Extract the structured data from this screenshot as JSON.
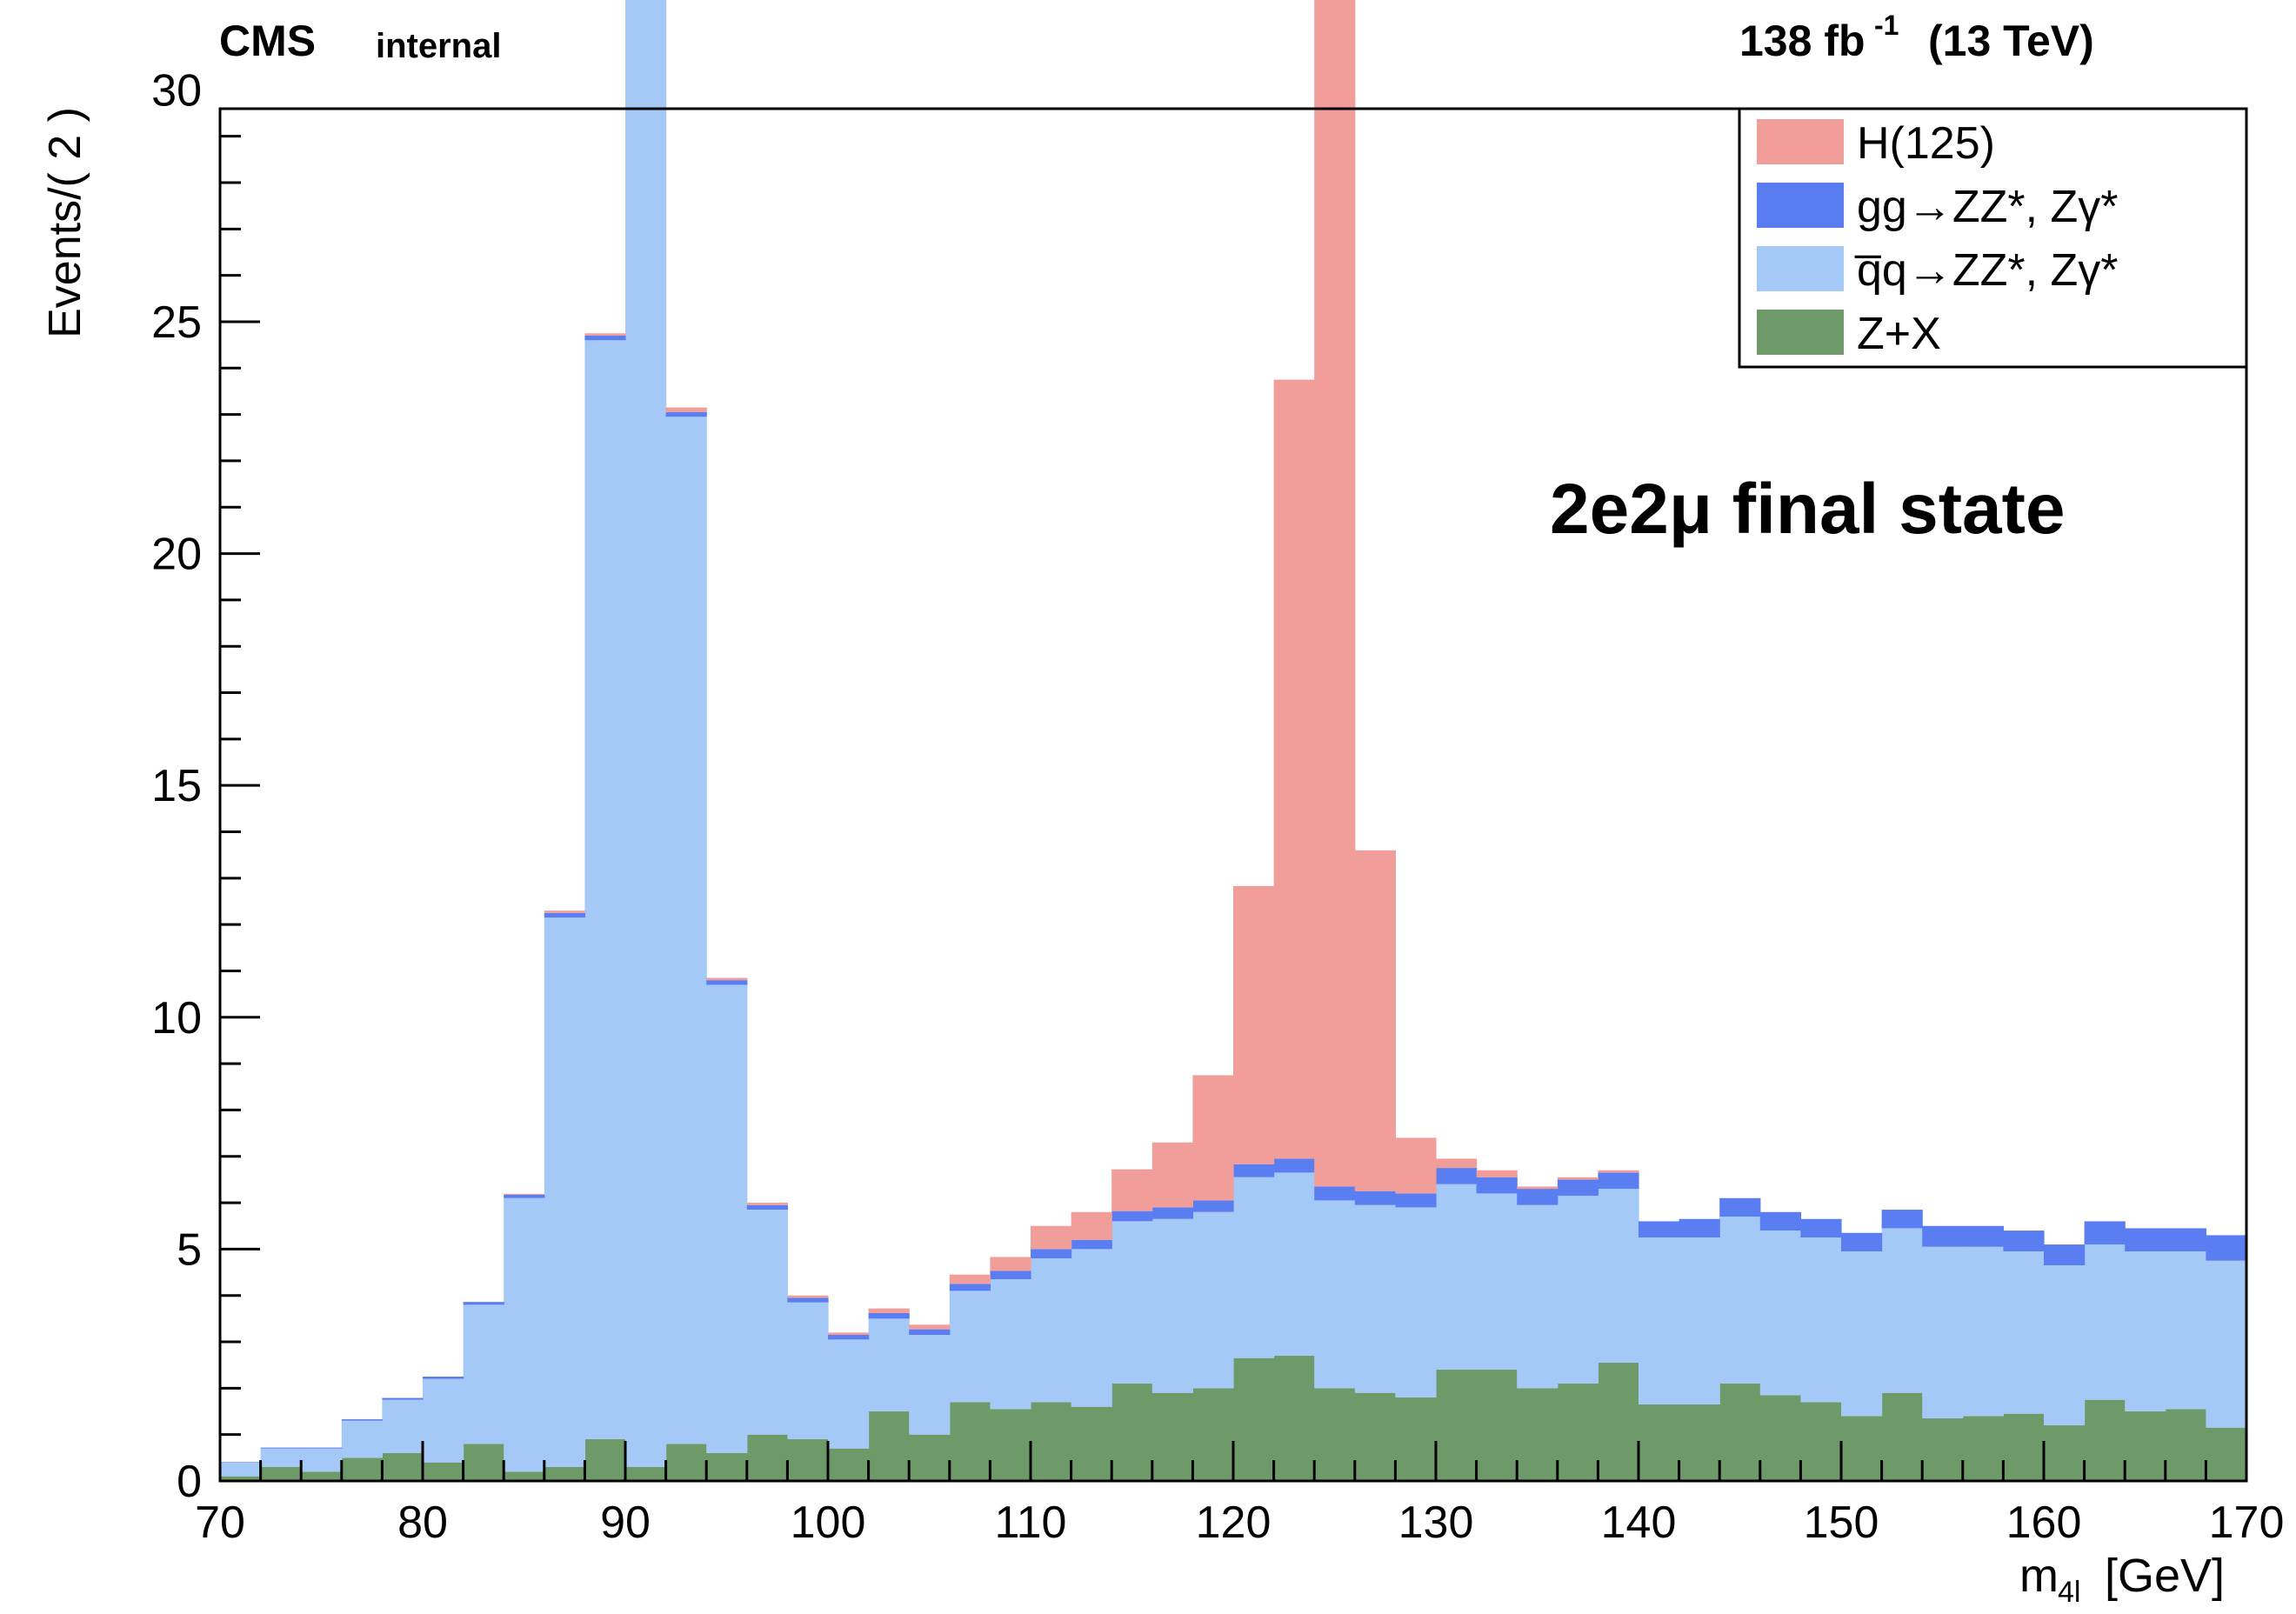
{
  "header": {
    "experiment": "CMS",
    "status": "internal",
    "lumi_value": "138 fb",
    "lumi_exp": "-1",
    "energy": "(13 TeV)"
  },
  "annotation": {
    "text": "2e2μ final state"
  },
  "chart_data": {
    "type": "bar",
    "stacked": true,
    "ylabel": "Events/( 2 )",
    "xlabel_main": "m",
    "xlabel_sub": "4l",
    "xlabel_unit": "[GeV]",
    "xlim": [
      70,
      170
    ],
    "ylim": [
      0,
      35
    ],
    "bin_width": 2,
    "x_ticks": [
      70,
      80,
      90,
      100,
      110,
      120,
      130,
      140,
      150,
      160,
      170
    ],
    "x_tick_labels": [
      "70",
      "80",
      "90",
      "100",
      "110",
      "120",
      "130",
      "140",
      "150",
      "160",
      "170"
    ],
    "y_ticks": [
      0,
      5,
      10,
      15,
      20,
      25,
      30
    ],
    "y_tick_labels": [
      "0",
      "5",
      "10",
      "15",
      "20",
      "25",
      "30"
    ],
    "legend_position": "top-right",
    "bin_edges_start": [
      70,
      72,
      74,
      76,
      78,
      80,
      82,
      84,
      86,
      88,
      90,
      92,
      94,
      96,
      98,
      100,
      102,
      104,
      106,
      108,
      110,
      112,
      114,
      116,
      118,
      120,
      122,
      124,
      126,
      128,
      130,
      132,
      134,
      136,
      138,
      140,
      142,
      144,
      146,
      148,
      150,
      152,
      154,
      156,
      158,
      160,
      162,
      164,
      166,
      168
    ],
    "series": [
      {
        "name": "Z+X",
        "color": "#6e9a6a",
        "values": [
          0.1,
          0.3,
          0.2,
          0.5,
          0.6,
          0.4,
          0.8,
          0.2,
          0.3,
          0.9,
          0.3,
          0.8,
          0.6,
          1.0,
          0.9,
          0.7,
          1.5,
          1.0,
          1.7,
          1.55,
          1.7,
          1.6,
          2.1,
          1.9,
          2.0,
          2.65,
          2.7,
          2.0,
          1.9,
          1.8,
          2.4,
          2.4,
          2.0,
          2.1,
          2.55,
          1.65,
          1.65,
          2.1,
          1.85,
          1.7,
          1.4,
          1.9,
          1.35,
          1.4,
          1.45,
          1.2,
          1.75,
          1.5,
          1.55,
          1.15
        ]
      },
      {
        "name": "q̅q→ZZ*, Zγ*",
        "color": "#a5c9f7",
        "values": [
          0.3,
          0.4,
          0.5,
          0.8,
          1.15,
          1.8,
          3.0,
          5.9,
          11.85,
          23.7,
          32.85,
          22.15,
          10.1,
          4.85,
          2.95,
          2.35,
          2.0,
          2.15,
          2.4,
          2.8,
          3.1,
          3.4,
          3.5,
          3.75,
          3.8,
          3.9,
          3.95,
          4.05,
          4.05,
          4.1,
          4.0,
          3.8,
          3.95,
          4.05,
          3.75,
          3.6,
          3.6,
          3.6,
          3.55,
          3.55,
          3.55,
          3.55,
          3.7,
          3.65,
          3.5,
          3.45,
          3.35,
          3.45,
          3.4,
          3.6
        ]
      },
      {
        "name": "gg→ZZ*, Zγ*",
        "color": "#5a7ef2",
        "values": [
          0.01,
          0.02,
          0.02,
          0.03,
          0.04,
          0.05,
          0.06,
          0.07,
          0.1,
          0.1,
          0.1,
          0.1,
          0.1,
          0.1,
          0.1,
          0.1,
          0.12,
          0.12,
          0.15,
          0.18,
          0.2,
          0.2,
          0.22,
          0.25,
          0.25,
          0.28,
          0.3,
          0.3,
          0.3,
          0.3,
          0.35,
          0.35,
          0.35,
          0.35,
          0.35,
          0.35,
          0.4,
          0.4,
          0.4,
          0.4,
          0.4,
          0.4,
          0.45,
          0.45,
          0.45,
          0.45,
          0.5,
          0.5,
          0.5,
          0.55
        ]
      },
      {
        "name": "H(125)",
        "color": "#f19d9a",
        "values": [
          0.0,
          0.0,
          0.0,
          0.0,
          0.0,
          0.0,
          0.0,
          0.02,
          0.05,
          0.05,
          0.1,
          0.1,
          0.05,
          0.05,
          0.05,
          0.05,
          0.1,
          0.1,
          0.2,
          0.3,
          0.5,
          0.6,
          0.9,
          1.4,
          2.7,
          6.0,
          16.8,
          26.1,
          7.35,
          1.2,
          0.2,
          0.15,
          0.05,
          0.05,
          0.05,
          0.0,
          0.0,
          0.0,
          0.0,
          0.0,
          0.0,
          0.0,
          0.0,
          0.0,
          0.0,
          0.0,
          0.0,
          0.0,
          0.0,
          0.0
        ]
      }
    ]
  }
}
